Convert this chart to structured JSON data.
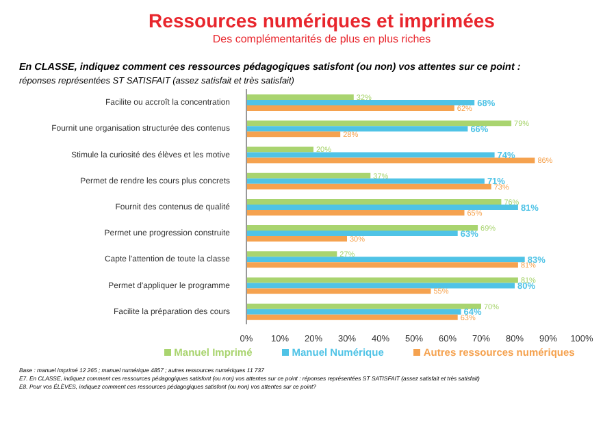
{
  "chart_data": {
    "type": "bar",
    "orientation": "horizontal",
    "title": "Ressources numériques et imprimées",
    "subtitle": "Des complémentarités de plus en plus riches",
    "categories": [
      "Facilite ou accroît la concentration",
      "Fournit une organisation structurée des contenus",
      "Stimule la curiosité des élèves et les motive",
      "Permet de rendre les cours plus concrets",
      "Fournit des contenus de qualité",
      "Permet une progression construite",
      "Capte l'attention de toute la classe",
      "Permet d'appliquer le programme",
      "Facilite la préparation des cours"
    ],
    "series": [
      {
        "name": "Manuel Imprimé",
        "color": "#a9d46f",
        "values": [
          32,
          79,
          20,
          37,
          76,
          69,
          27,
          81,
          70
        ],
        "value_labels": [
          "32%",
          "79%",
          "20%",
          "37%",
          "76%",
          "69%",
          "27%",
          "81%",
          "70%"
        ]
      },
      {
        "name": "Manuel Numérique",
        "color": "#4fc3e6",
        "values": [
          68,
          66,
          74,
          71,
          81,
          63,
          83,
          80,
          64
        ],
        "value_labels": [
          "68%",
          "66%",
          "74%",
          "71%",
          "81%",
          "63%",
          "83%",
          "80%",
          "64%"
        ]
      },
      {
        "name": "Autres ressources numériques",
        "color": "#f5a24f",
        "values": [
          62,
          28,
          86,
          73,
          65,
          30,
          81,
          55,
          63
        ],
        "value_labels": [
          "62%",
          "28%",
          "86%",
          "73%",
          "65%",
          "30%",
          "81%",
          "55%",
          "63%"
        ]
      }
    ],
    "xlim": [
      0,
      100
    ],
    "xticks": [
      {
        "value": 0,
        "label": "0%"
      },
      {
        "value": 10,
        "label": "10%"
      },
      {
        "value": 20,
        "label": "20%"
      },
      {
        "value": 30,
        "label": "30%"
      },
      {
        "value": 40,
        "label": "40%"
      },
      {
        "value": 50,
        "label": "50%"
      },
      {
        "value": 60,
        "label": "60%"
      },
      {
        "value": 70,
        "label": "70%"
      },
      {
        "value": 80,
        "label": "80%"
      },
      {
        "value": 90,
        "label": "90%"
      },
      {
        "value": 100,
        "label": "100%"
      }
    ],
    "legend": "bottom",
    "grid": false,
    "annotations": [
      "En CLASSE, indiquez comment ces ressources pédagogiques satisfont (ou non) vos attentes sur ce point :",
      "réponses représentées ST SATISFAIT  (assez satisfait et très satisfait)",
      "Base : manuel imprimé 12 265 ; manuel numérique 4857 ; autres ressources numériques 11 737",
      "E7. En CLASSE, indiquez comment ces ressources pédagogiques satisfont (ou non) vos attentes sur ce point : réponses représentées ST SATISFAIT  (assez satisfait et très satisfait)",
      "E8. Pour vos ÉLÈVES, indiquez comment ces ressources pédagogiques satisfont (ou non) vos attentes sur ce point?"
    ]
  }
}
